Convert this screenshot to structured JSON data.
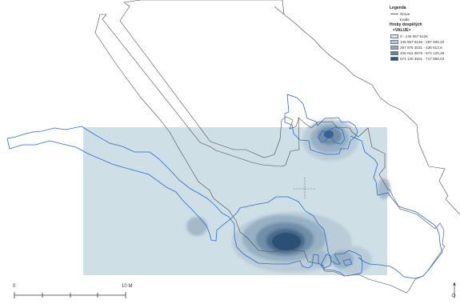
{
  "legend": {
    "title": "Legenda",
    "line_items": [
      {
        "label": "Šroue",
        "color": "#2a6bd0"
      },
      {
        "label": "Kedle",
        "color": ""
      }
    ],
    "layer_title": "Hroby dospělých",
    "value_header": "<VALUE>",
    "classes": [
      {
        "label": "0 - 145 657 6125",
        "color": "#dde6ec"
      },
      {
        "label": "145 657 6126 - 297 606,23",
        "color": "#b4c6d2"
      },
      {
        "label": "297 675 3031 - 436 812,8",
        "color": "#8ea8bb"
      },
      {
        "label": "436 012 9578 - 574 120,45",
        "color": "#5f7f9b"
      },
      {
        "label": "574 120 4501 - 717 568,03",
        "color": "#2f5273"
      }
    ]
  },
  "scale_bar": {
    "start_label": "0",
    "end_label": "10 M"
  },
  "north_arrow": {
    "label": "S"
  },
  "colors": {
    "raster_base": "#c9dbe3",
    "outline": "#2a6bd0",
    "dashed_outline": "#333333"
  }
}
